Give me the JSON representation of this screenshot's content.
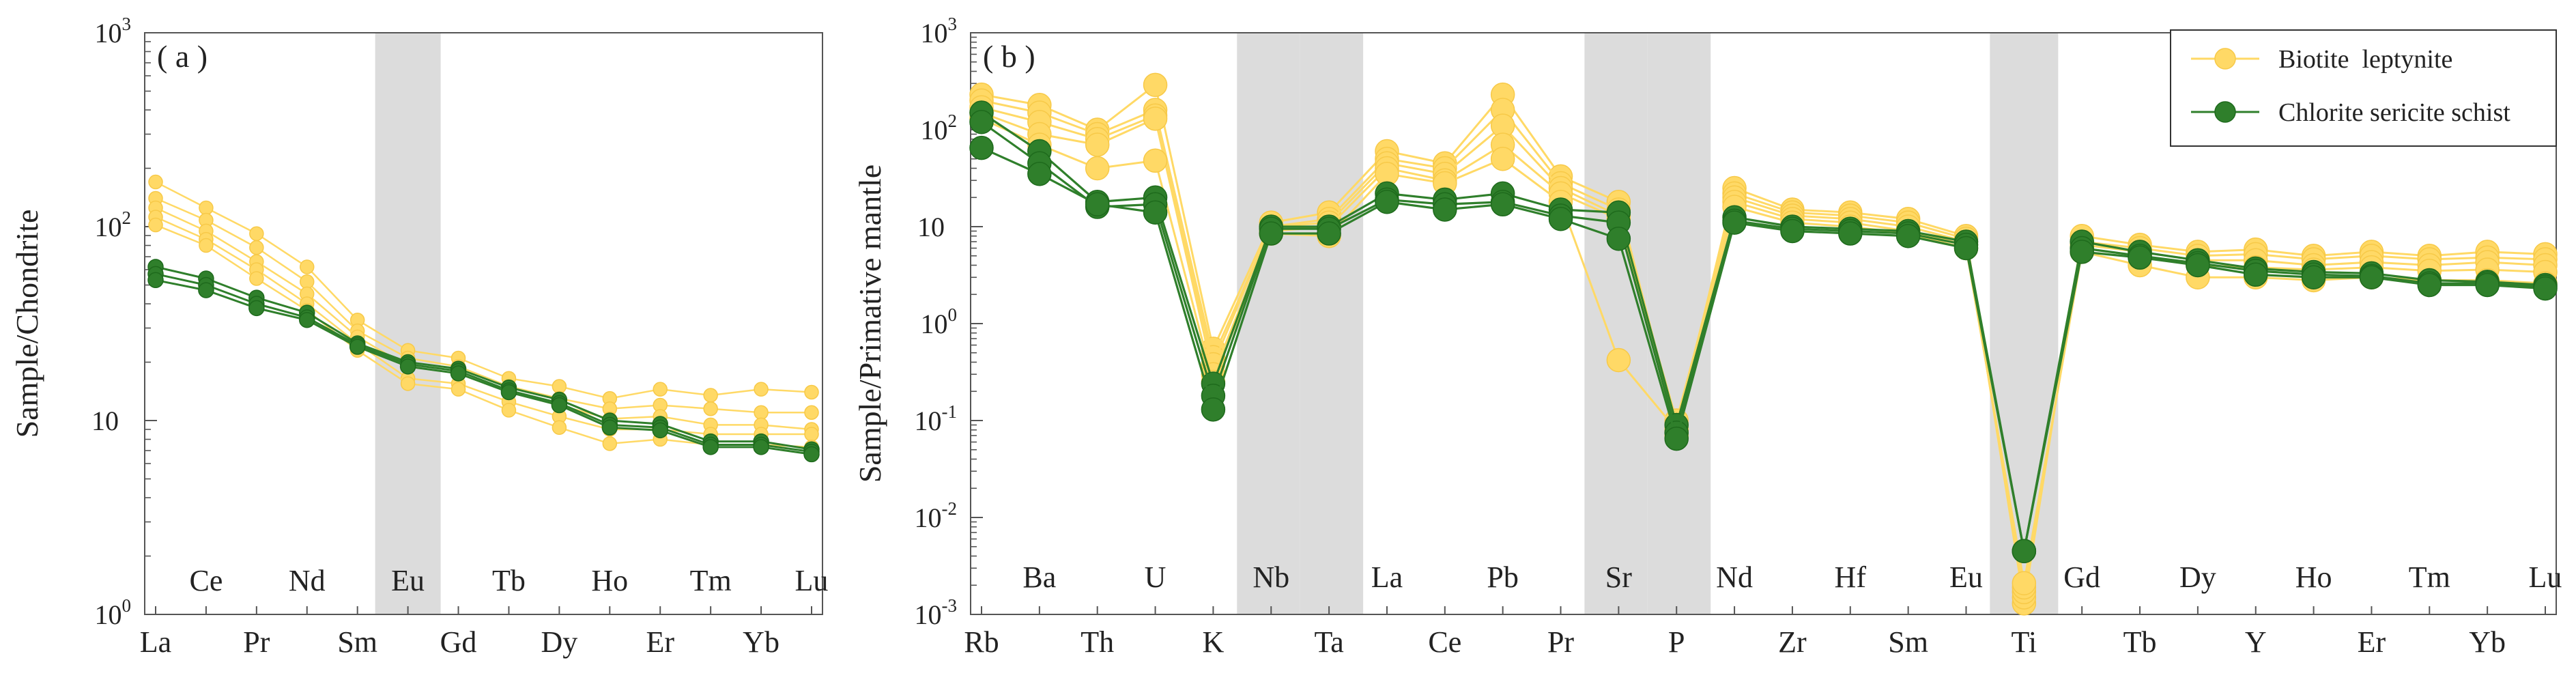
{
  "colors": {
    "biotite": "#ffd966",
    "biotite_stroke": "#f7c948",
    "chlorite": "#2f7f2b",
    "chlorite_stroke": "#1e6a1c",
    "band": "#dcdcdc",
    "axis": "#555555"
  },
  "chart_data": [
    {
      "type": "line",
      "scale": "log",
      "panel_label": "( a )",
      "ylabel": "Sample/Chondrite",
      "ylim": [
        1,
        1000
      ],
      "y_ticks": [
        {
          "base": "10",
          "exp": "0",
          "value": 1
        },
        {
          "base": "10",
          "exp": "",
          "value": 10
        },
        {
          "base": "10",
          "exp": "2",
          "value": 100
        },
        {
          "base": "10",
          "exp": "3",
          "value": 1000
        }
      ],
      "categories": [
        "La",
        "Ce",
        "Pr",
        "Nd",
        "Sm",
        "Eu",
        "Gd",
        "Tb",
        "Dy",
        "Ho",
        "Er",
        "Tm",
        "Yb",
        "Lu"
      ],
      "shaded_categories": [
        "Eu"
      ],
      "series": [
        {
          "name": "Biotite leptynite",
          "group": "biotite",
          "values": [
            170,
            125,
            92,
            62,
            33,
            23,
            21,
            16.5,
            15,
            13,
            14.5,
            13.5,
            14.5,
            14
          ]
        },
        {
          "name": "Biotite leptynite",
          "group": "biotite",
          "values": [
            140,
            108,
            78,
            52,
            29,
            21,
            19,
            15,
            13,
            11.5,
            12,
            11.5,
            11,
            11
          ]
        },
        {
          "name": "Biotite leptynite",
          "group": "biotite",
          "values": [
            125,
            95,
            66,
            45,
            27,
            19,
            17.5,
            14,
            12,
            10.2,
            10.5,
            9.5,
            9.5,
            9
          ]
        },
        {
          "name": "Biotite leptynite",
          "group": "biotite",
          "values": [
            112,
            86,
            60,
            40,
            25,
            16.5,
            15.5,
            12.5,
            10.5,
            9,
            9,
            8.5,
            8.5,
            8.5
          ]
        },
        {
          "name": "Biotite leptynite",
          "group": "biotite",
          "values": [
            102,
            80,
            54,
            37,
            23,
            15.5,
            14.5,
            11.3,
            9.2,
            7.6,
            8,
            7.5,
            7.5,
            7.3
          ]
        },
        {
          "name": "Chlorite sericite schist",
          "group": "chlorite",
          "values": [
            62,
            54,
            43,
            36,
            25,
            20,
            18.5,
            14.8,
            12.8,
            10,
            9.6,
            7.8,
            7.8,
            7.1
          ]
        },
        {
          "name": "Chlorite sericite schist",
          "group": "chlorite",
          "values": [
            57,
            50,
            40,
            34,
            24.5,
            19.5,
            18,
            14.3,
            12.3,
            9.5,
            9.2,
            7.5,
            7.5,
            6.9
          ]
        },
        {
          "name": "Chlorite sericite schist",
          "group": "chlorite",
          "values": [
            53,
            47,
            38,
            33,
            24,
            19,
            17.5,
            14,
            12,
            9.2,
            8.9,
            7.3,
            7.3,
            6.7
          ]
        }
      ]
    },
    {
      "type": "line",
      "scale": "log",
      "panel_label": "( b )",
      "ylabel": "Sample/Primative mantle",
      "ylim": [
        0.001,
        1000
      ],
      "y_ticks": [
        {
          "base": "10",
          "exp": "-3",
          "value": 0.001
        },
        {
          "base": "10",
          "exp": "-2",
          "value": 0.01
        },
        {
          "base": "10",
          "exp": "-1",
          "value": 0.1
        },
        {
          "base": "10",
          "exp": "0",
          "value": 1
        },
        {
          "base": "10",
          "exp": "",
          "value": 10
        },
        {
          "base": "10",
          "exp": "2",
          "value": 100
        },
        {
          "base": "10",
          "exp": "3",
          "value": 1000
        }
      ],
      "categories": [
        "Rb",
        "Ba",
        "Th",
        "U",
        "K",
        "Nb",
        "Ta",
        "La",
        "Ce",
        "Pb",
        "Pr",
        "Sr",
        "P",
        "Nd",
        "Zr",
        "Hf",
        "Sm",
        "Eu",
        "Ti",
        "Gd",
        "Tb",
        "Dy",
        "Y",
        "Ho",
        "Er",
        "Tm",
        "Yb",
        "Lu"
      ],
      "shaded_categories": [
        "Nb",
        "Ta",
        "Sr",
        "P",
        "Ti"
      ],
      "legend": [
        {
          "label": "Biotite  leptynite",
          "group": "biotite"
        },
        {
          "label": "Chlorite sericite schist",
          "group": "chlorite"
        }
      ],
      "series": [
        {
          "name": "Biotite leptynite",
          "group": "biotite",
          "values": [
            230,
            180,
            100,
            290,
            0.55,
            11,
            14,
            60,
            45,
            230,
            33,
            18,
            0.08,
            25,
            15,
            14,
            12,
            8,
            0.0013,
            8,
            6.5,
            5.5,
            5.8,
            5,
            5.5,
            5,
            5.5,
            5.2
          ]
        },
        {
          "name": "Biotite leptynite",
          "group": "biotite",
          "values": [
            200,
            150,
            90,
            160,
            0.45,
            10,
            12,
            50,
            40,
            160,
            28,
            15,
            0.09,
            22,
            14,
            13,
            11,
            7.5,
            0.0015,
            7,
            6,
            5,
            5.2,
            4.6,
            5,
            4.6,
            4.8,
            4.6
          ]
        },
        {
          "name": "Biotite leptynite",
          "group": "biotite",
          "values": [
            170,
            120,
            80,
            140,
            0.38,
            10,
            11,
            45,
            35,
            110,
            25,
            13,
            0.07,
            20,
            13,
            12,
            10,
            7,
            0.0017,
            6.5,
            5.5,
            4.5,
            4.5,
            4,
            4.3,
            4,
            4.3,
            4
          ]
        },
        {
          "name": "Biotite leptynite",
          "group": "biotite",
          "values": [
            150,
            90,
            70,
            130,
            0.3,
            9,
            10,
            40,
            30,
            70,
            22,
            12,
            0.1,
            18,
            12,
            11,
            9,
            6.5,
            0.0019,
            6,
            5,
            4,
            3.8,
            3.6,
            3.8,
            3.5,
            3.6,
            3.4
          ]
        },
        {
          "name": "Biotite leptynite",
          "group": "biotite",
          "values": [
            130,
            70,
            40,
            48,
            0.25,
            8.5,
            8,
            35,
            28,
            50,
            18,
            0.42,
            0.08,
            16,
            11,
            10,
            8.5,
            6,
            0.0021,
            5.5,
            4,
            3,
            3,
            2.8,
            3,
            2.8,
            2.8,
            2.6
          ]
        },
        {
          "name": "Chlorite sericite schist",
          "group": "chlorite",
          "values": [
            150,
            60,
            18,
            20,
            0.24,
            10,
            10,
            22,
            19,
            22,
            15,
            14,
            0.09,
            12.5,
            10,
            9.5,
            9,
            7,
            0.0045,
            7,
            5.5,
            4.5,
            3.7,
            3.4,
            3.3,
            2.8,
            2.7,
            2.5
          ]
        },
        {
          "name": "Chlorite sericite schist",
          "group": "chlorite",
          "values": [
            120,
            45,
            16,
            17,
            0.18,
            9.5,
            9.5,
            19,
            17,
            18,
            13,
            11,
            0.075,
            11.5,
            9.5,
            9,
            8.5,
            6.5,
            0.0045,
            6,
            5,
            4.2,
            3.5,
            3.2,
            3.1,
            2.6,
            2.6,
            2.4
          ]
        },
        {
          "name": "Chlorite sericite schist",
          "group": "chlorite",
          "values": [
            65,
            35,
            17,
            14,
            0.13,
            8.5,
            8.5,
            18,
            15,
            17,
            12,
            7.5,
            0.065,
            11,
            9,
            8.5,
            8,
            6,
            0.0045,
            5.5,
            4.8,
            4,
            3.2,
            3,
            3,
            2.5,
            2.5,
            2.3
          ]
        }
      ]
    }
  ]
}
